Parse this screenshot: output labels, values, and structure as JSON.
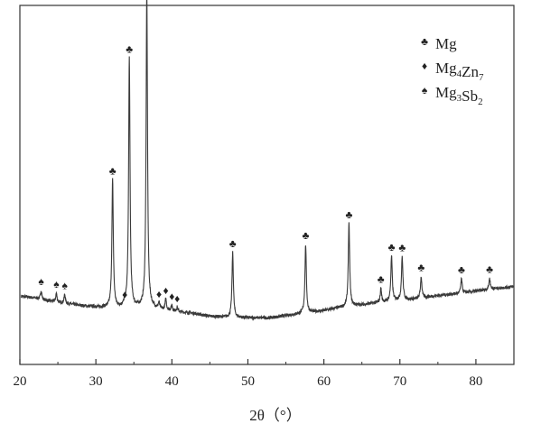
{
  "chart_data": {
    "type": "line",
    "xlabel": "2θ（°）",
    "ylabel": "",
    "xlim": [
      20,
      85
    ],
    "ylim": [
      0,
      100
    ],
    "x_ticks": [
      20,
      30,
      40,
      50,
      60,
      70,
      80
    ],
    "grid": false,
    "legend_position": "top-right",
    "legend": [
      {
        "symbol": "♣",
        "label": "Mg",
        "sub": [
          "",
          ""
        ]
      },
      {
        "symbol": "♦",
        "label": "Mg4Zn7",
        "sub": [
          "4",
          "7"
        ],
        "parts": [
          "Mg",
          "Zn"
        ]
      },
      {
        "symbol": "♠",
        "label": "Mg3Sb2",
        "sub": [
          "3",
          "2"
        ],
        "parts": [
          "Mg",
          "Sb"
        ]
      }
    ],
    "baseline": [
      [
        20.2,
        19.0
      ],
      [
        22,
        18.5
      ],
      [
        24,
        17.6
      ],
      [
        26,
        17.0
      ],
      [
        28,
        16.4
      ],
      [
        30,
        16.0
      ],
      [
        33,
        15.8
      ],
      [
        35,
        15.8
      ],
      [
        37,
        15.9
      ],
      [
        39,
        15.2
      ],
      [
        41,
        14.6
      ],
      [
        43,
        14.2
      ],
      [
        45,
        13.4
      ],
      [
        47,
        13.2
      ],
      [
        50,
        13.0
      ],
      [
        53,
        13.0
      ],
      [
        55,
        13.6
      ],
      [
        57,
        14.2
      ],
      [
        60,
        15.0
      ],
      [
        62,
        15.8
      ],
      [
        65,
        16.6
      ],
      [
        68,
        17.4
      ],
      [
        70,
        18.0
      ],
      [
        72,
        18.2
      ],
      [
        75,
        19.2
      ],
      [
        78,
        19.8
      ],
      [
        80,
        20.4
      ],
      [
        82,
        21.0
      ],
      [
        85,
        21.7
      ]
    ],
    "peaks": [
      {
        "x": 22.8,
        "h": 2.5,
        "w": 0.1,
        "marker": "♠"
      },
      {
        "x": 24.8,
        "h": 2.5,
        "w": 0.1,
        "marker": "♠"
      },
      {
        "x": 25.9,
        "h": 2.5,
        "w": 0.1,
        "marker": "♠"
      },
      {
        "x": 32.2,
        "h": 35.5,
        "w": 0.11,
        "marker": "♣"
      },
      {
        "x": 33.8,
        "h": 1.2,
        "w": 0.1,
        "marker": "♦"
      },
      {
        "x": 34.4,
        "h": 69.5,
        "w": 0.11,
        "marker": "♣"
      },
      {
        "x": 36.7,
        "h": 88.0,
        "w": 0.11,
        "marker": "♣"
      },
      {
        "x": 38.3,
        "h": 1.6,
        "w": 0.1,
        "marker": "♦"
      },
      {
        "x": 39.2,
        "h": 3.0,
        "w": 0.1,
        "marker": "♦"
      },
      {
        "x": 40.0,
        "h": 1.6,
        "w": 0.1,
        "marker": "♦"
      },
      {
        "x": 40.7,
        "h": 1.2,
        "w": 0.1,
        "marker": "♦"
      },
      {
        "x": 48.0,
        "h": 18.0,
        "w": 0.11,
        "marker": "♣"
      },
      {
        "x": 57.6,
        "h": 19.0,
        "w": 0.11,
        "marker": "♣"
      },
      {
        "x": 63.3,
        "h": 23.0,
        "w": 0.11,
        "marker": "♣"
      },
      {
        "x": 67.5,
        "h": 4.0,
        "w": 0.1,
        "marker": "♣"
      },
      {
        "x": 68.9,
        "h": 12.5,
        "w": 0.11,
        "marker": "♣"
      },
      {
        "x": 70.3,
        "h": 12.0,
        "w": 0.11,
        "marker": "♣"
      },
      {
        "x": 72.8,
        "h": 6.0,
        "w": 0.11,
        "marker": "♣"
      },
      {
        "x": 78.1,
        "h": 4.0,
        "w": 0.11,
        "marker": "♣"
      },
      {
        "x": 81.8,
        "h": 3.0,
        "w": 0.11,
        "marker": "♣"
      }
    ]
  }
}
